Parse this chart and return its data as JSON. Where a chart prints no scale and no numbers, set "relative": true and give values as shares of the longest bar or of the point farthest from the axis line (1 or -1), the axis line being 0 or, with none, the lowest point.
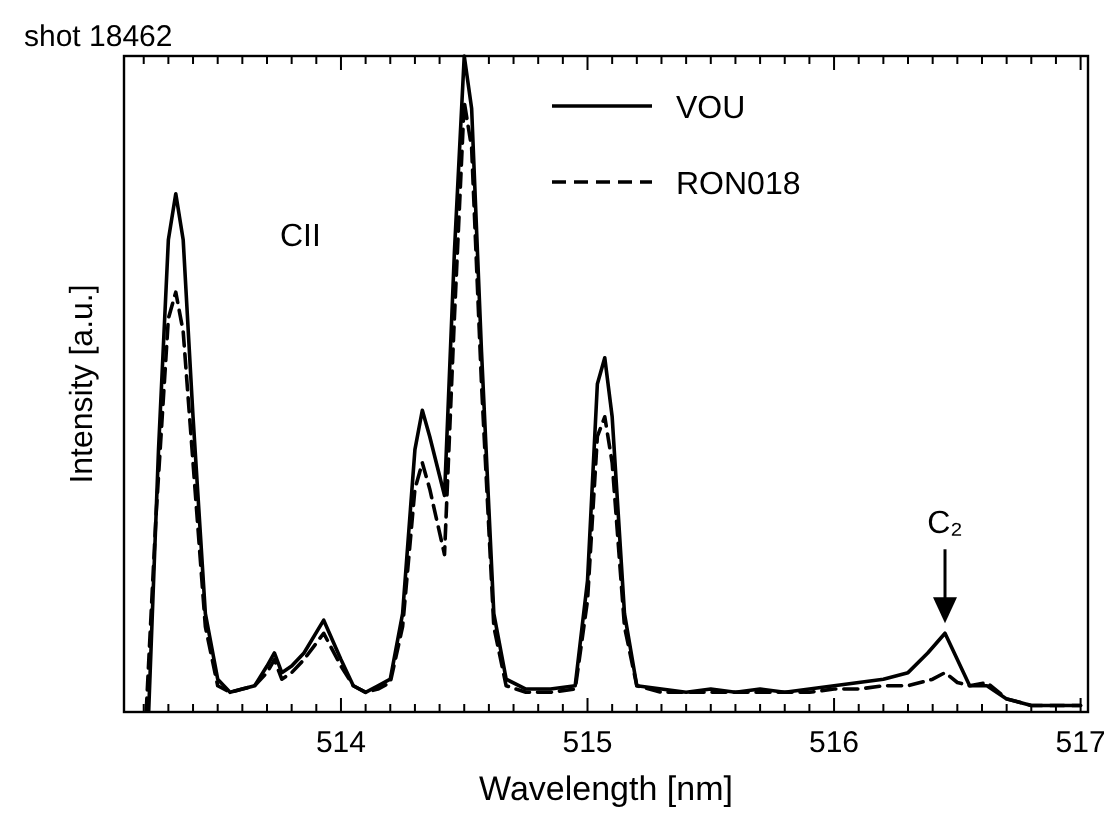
{
  "chart_data": {
    "type": "line",
    "title": "shot 18462",
    "xlabel": "Wavelength [nm]",
    "ylabel": "Intensity [a.u.]",
    "relative": true,
    "xlim": [
      513.12,
      517.03
    ],
    "xticks": [
      {
        "value": 513.2,
        "label": null
      },
      {
        "value": 513.3,
        "label": null
      },
      {
        "value": 513.4,
        "label": null
      },
      {
        "value": 513.5,
        "label": null
      },
      {
        "value": 513.6,
        "label": null
      },
      {
        "value": 513.7,
        "label": null
      },
      {
        "value": 513.8,
        "label": null
      },
      {
        "value": 513.9,
        "label": null
      },
      514,
      {
        "value": 514.1,
        "label": null
      },
      {
        "value": 514.2,
        "label": null
      },
      {
        "value": 514.3,
        "label": null
      },
      {
        "value": 514.4,
        "label": null
      },
      {
        "value": 514.5,
        "label": null
      },
      {
        "value": 514.6,
        "label": null
      },
      {
        "value": 514.7,
        "label": null
      },
      {
        "value": 514.8,
        "label": null
      },
      {
        "value": 514.9,
        "label": null
      },
      515,
      {
        "value": 515.1,
        "label": null
      },
      {
        "value": 515.2,
        "label": null
      },
      {
        "value": 515.3,
        "label": null
      },
      {
        "value": 515.4,
        "label": null
      },
      {
        "value": 515.5,
        "label": null
      },
      {
        "value": 515.6,
        "label": null
      },
      {
        "value": 515.7,
        "label": null
      },
      {
        "value": 515.8,
        "label": null
      },
      {
        "value": 515.9,
        "label": null
      },
      516,
      {
        "value": 516.1,
        "label": null
      },
      {
        "value": 516.2,
        "label": null
      },
      {
        "value": 516.3,
        "label": null
      },
      {
        "value": 516.4,
        "label": null
      },
      {
        "value": 516.5,
        "label": null
      },
      {
        "value": 516.6,
        "label": null
      },
      {
        "value": 516.7,
        "label": null
      },
      {
        "value": 516.8,
        "label": null
      },
      {
        "value": 516.9,
        "label": null
      },
      517
    ],
    "legend": "top right",
    "grid": false,
    "marker": "none",
    "annotations": [
      "CII",
      {
        "text": "C₂",
        "x": 516.45,
        "y": 0.12
      }
    ],
    "series": [
      {
        "name": "VOU",
        "color": "#000000",
        "line_style": "solid",
        "x": [
          513.22,
          513.26,
          513.3,
          513.33,
          513.36,
          513.4,
          513.45,
          513.5,
          513.55,
          513.6,
          513.65,
          513.7,
          513.73,
          513.76,
          513.8,
          513.85,
          513.93,
          514.0,
          514.05,
          514.1,
          514.15,
          514.2,
          514.25,
          514.3,
          514.33,
          514.36,
          514.42,
          514.46,
          514.5,
          514.53,
          514.57,
          514.62,
          514.67,
          514.75,
          514.85,
          514.95,
          515.0,
          515.04,
          515.07,
          515.1,
          515.15,
          515.2,
          515.3,
          515.4,
          515.5,
          515.6,
          515.7,
          515.8,
          515.9,
          516.0,
          516.1,
          516.2,
          516.3,
          516.38,
          516.45,
          516.5,
          516.55,
          516.62,
          516.7,
          516.8,
          517.0
        ],
        "values": [
          0,
          0.4,
          0.72,
          0.79,
          0.72,
          0.45,
          0.15,
          0.05,
          0.03,
          0.035,
          0.04,
          0.07,
          0.09,
          0.06,
          0.07,
          0.09,
          0.14,
          0.08,
          0.04,
          0.03,
          0.04,
          0.05,
          0.15,
          0.4,
          0.46,
          0.42,
          0.33,
          0.7,
          1.0,
          0.92,
          0.55,
          0.15,
          0.05,
          0.035,
          0.035,
          0.04,
          0.2,
          0.5,
          0.54,
          0.45,
          0.15,
          0.04,
          0.035,
          0.03,
          0.035,
          0.03,
          0.035,
          0.03,
          0.035,
          0.04,
          0.045,
          0.05,
          0.06,
          0.09,
          0.12,
          0.08,
          0.04,
          0.04,
          0.02,
          0.01,
          0.01
        ]
      },
      {
        "name": "RON018",
        "color": "#000000",
        "line_style": "dashed",
        "x": [
          513.21,
          513.25,
          513.3,
          513.33,
          513.36,
          513.4,
          513.45,
          513.5,
          513.55,
          513.6,
          513.65,
          513.7,
          513.73,
          513.76,
          513.8,
          513.85,
          513.93,
          514.0,
          514.05,
          514.1,
          514.15,
          514.2,
          514.25,
          514.3,
          514.33,
          514.36,
          514.42,
          514.46,
          514.5,
          514.53,
          514.57,
          514.62,
          514.67,
          514.75,
          514.85,
          514.95,
          515.0,
          515.04,
          515.07,
          515.1,
          515.15,
          515.2,
          515.3,
          515.4,
          515.5,
          515.6,
          515.7,
          515.8,
          515.9,
          516.0,
          516.1,
          516.2,
          516.3,
          516.4,
          516.45,
          516.5,
          516.55,
          516.62,
          516.7,
          516.8,
          517.0
        ],
        "values": [
          0,
          0.3,
          0.6,
          0.64,
          0.58,
          0.38,
          0.13,
          0.04,
          0.03,
          0.035,
          0.04,
          0.06,
          0.08,
          0.05,
          0.06,
          0.08,
          0.12,
          0.07,
          0.04,
          0.03,
          0.035,
          0.045,
          0.13,
          0.34,
          0.38,
          0.34,
          0.24,
          0.6,
          0.93,
          0.86,
          0.5,
          0.13,
          0.04,
          0.03,
          0.03,
          0.035,
          0.17,
          0.42,
          0.45,
          0.38,
          0.13,
          0.04,
          0.03,
          0.03,
          0.03,
          0.03,
          0.03,
          0.03,
          0.03,
          0.035,
          0.035,
          0.04,
          0.04,
          0.05,
          0.06,
          0.045,
          0.04,
          0.045,
          0.02,
          0.01,
          0.01
        ]
      }
    ]
  }
}
